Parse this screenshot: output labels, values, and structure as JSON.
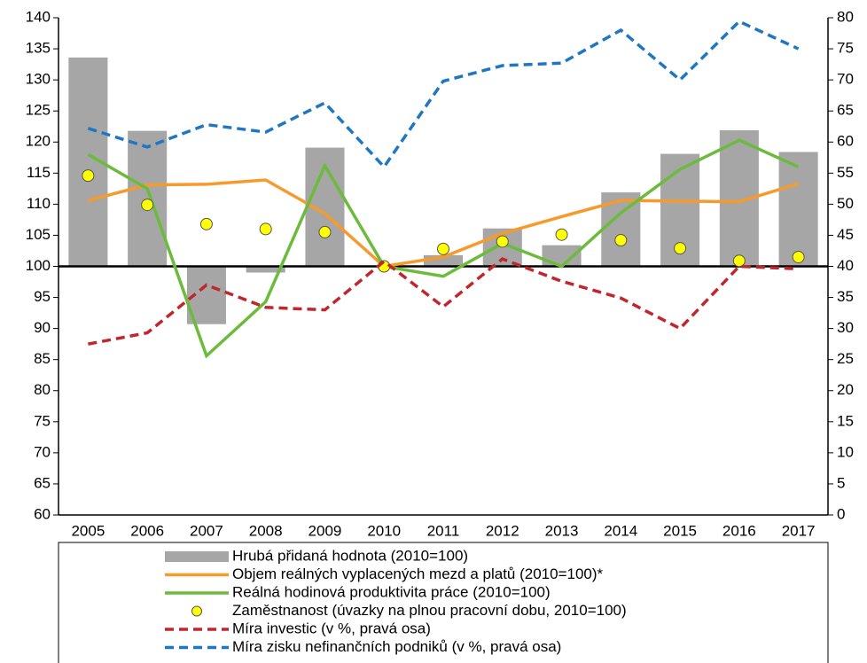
{
  "chart_data": {
    "type": "combo",
    "categories": [
      "2005",
      "2006",
      "2007",
      "2008",
      "2009",
      "2010",
      "2011",
      "2012",
      "2013",
      "2014",
      "2015",
      "2016",
      "2017"
    ],
    "ylim": [
      60,
      140
    ],
    "yticks": [
      60,
      65,
      70,
      75,
      80,
      85,
      90,
      95,
      100,
      105,
      110,
      115,
      120,
      125,
      130,
      135,
      140
    ],
    "y2lim": [
      0,
      80
    ],
    "y2ticks": [
      0,
      5,
      10,
      15,
      20,
      25,
      30,
      35,
      40,
      45,
      50,
      55,
      60,
      65,
      70,
      75,
      80
    ],
    "baseline": 100,
    "series": [
      {
        "name": "Hrubá přidaná hodnota (2010=100)",
        "kind": "bar",
        "color": "#a6a6a6",
        "values": [
          133.6,
          121.8,
          90.7,
          99.0,
          119.1,
          100,
          101.8,
          106.1,
          103.4,
          111.9,
          118.1,
          121.9,
          118.4
        ]
      },
      {
        "name": "Objem reálných vyplacených mezd a platů (2010=100)*",
        "kind": "line",
        "color": "#f79a2e",
        "values": [
          110.6,
          113.1,
          113.2,
          113.9,
          108.5,
          100,
          101.5,
          105.3,
          108.0,
          110.6,
          110.5,
          110.4,
          113.3
        ]
      },
      {
        "name": "Reálná hodinová produktivita práce (2010=100)",
        "kind": "line",
        "color": "#6cbb3c",
        "values": [
          118.0,
          112.5,
          85.6,
          94.3,
          116.2,
          100,
          98.4,
          103.7,
          100.0,
          108.6,
          115.6,
          120.3,
          116.0
        ]
      },
      {
        "name": "Zaměstnanost (úvazky na plnou pracovní dobu, 2010=100)",
        "kind": "scatter",
        "color": "#ffff00",
        "values": [
          114.6,
          109.9,
          106.8,
          106.0,
          105.5,
          100,
          102.8,
          104.0,
          105.1,
          104.2,
          102.9,
          100.9,
          101.5
        ]
      },
      {
        "name": "Míra investic (v %, pravá osa)",
        "kind": "dashed",
        "axis": "y2",
        "color": "#c0272d",
        "values": [
          27.5,
          29.3,
          37.0,
          33.4,
          33.0,
          40.8,
          33.5,
          41.2,
          37.6,
          34.9,
          30.0,
          40.0,
          39.6
        ]
      },
      {
        "name": "Míra zisku nefinančních podniků (v %, pravá osa)",
        "kind": "dashed",
        "axis": "y2",
        "color": "#1f77c4",
        "values": [
          62.2,
          59.2,
          62.8,
          61.6,
          66.3,
          56.0,
          69.8,
          72.3,
          72.7,
          78.0,
          70.0,
          79.4,
          75.0
        ]
      }
    ]
  }
}
